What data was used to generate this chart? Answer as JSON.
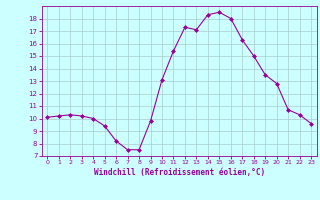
{
  "x": [
    0,
    1,
    2,
    3,
    4,
    5,
    6,
    7,
    8,
    9,
    10,
    11,
    12,
    13,
    14,
    15,
    16,
    17,
    18,
    19,
    20,
    21,
    22,
    23
  ],
  "y": [
    10.1,
    10.2,
    10.3,
    10.2,
    10.0,
    9.4,
    8.2,
    7.5,
    7.5,
    9.8,
    13.1,
    15.4,
    17.3,
    17.1,
    18.3,
    18.5,
    18.0,
    16.3,
    15.0,
    13.5,
    12.8,
    10.7,
    10.3,
    9.6
  ],
  "line_color": "#990099",
  "marker": "D",
  "marker_size": 2,
  "bg_color": "#ccffff",
  "grid_color": "#aacccc",
  "xlabel": "Windchill (Refroidissement éolien,°C)",
  "xlabel_color": "#990099",
  "tick_color": "#990099",
  "ylim": [
    7,
    19
  ],
  "yticks": [
    7,
    8,
    9,
    10,
    11,
    12,
    13,
    14,
    15,
    16,
    17,
    18
  ],
  "xlim": [
    -0.5,
    23.5
  ],
  "xticks": [
    0,
    1,
    2,
    3,
    4,
    5,
    6,
    7,
    8,
    9,
    10,
    11,
    12,
    13,
    14,
    15,
    16,
    17,
    18,
    19,
    20,
    21,
    22,
    23
  ]
}
